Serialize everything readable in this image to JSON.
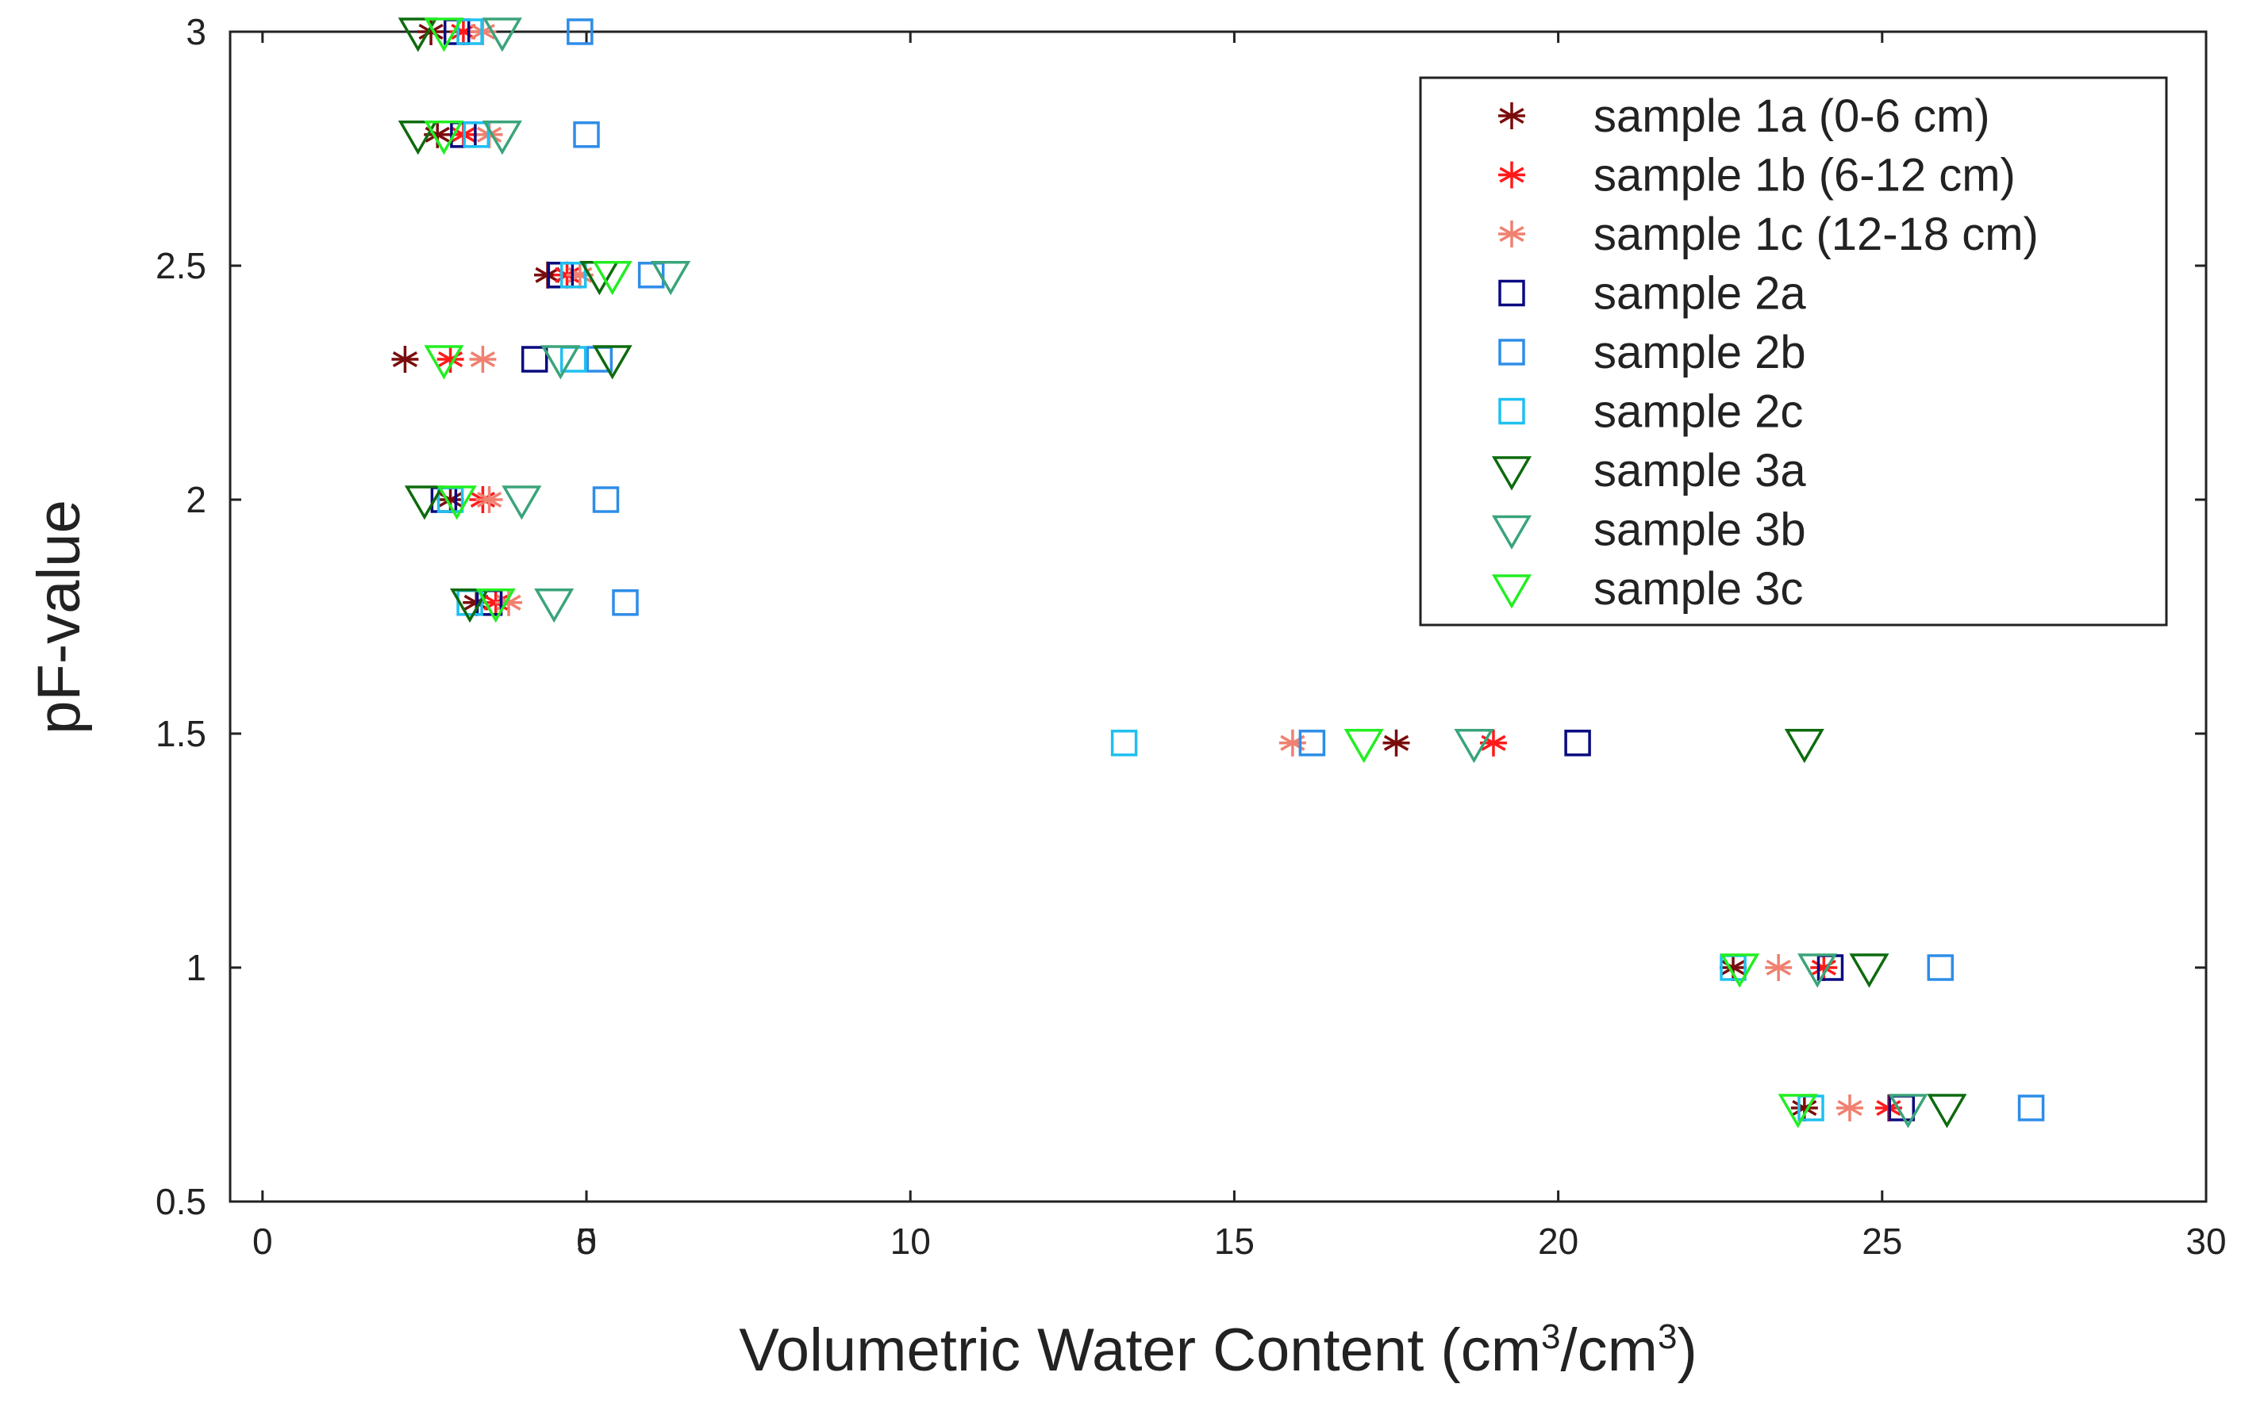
{
  "chart_data": {
    "type": "scatter",
    "xlabel_main": "Volumetric Water Content (cm",
    "xlabel_sup1": "3",
    "xlabel_mid": "/cm",
    "xlabel_sup2": "3",
    "xlabel_end": ")",
    "ylabel": "pF-value",
    "xlim": [
      -0.5,
      30
    ],
    "ylim": [
      0.5,
      3
    ],
    "xticks": [
      0,
      5,
      10,
      15,
      20,
      25,
      30
    ],
    "xtick_labels": [
      "0",
      "5",
      "0",
      "10",
      "15",
      "20",
      "25",
      "30"
    ],
    "xtick_positions": [
      0,
      5,
      5,
      10,
      15,
      20,
      25,
      30
    ],
    "yticks": [
      0.5,
      1,
      1.5,
      2,
      2.5,
      3
    ],
    "ytick_labels": [
      "0.5",
      "1",
      "1.5",
      "2",
      "2.5",
      "3"
    ],
    "legend_position": "top-right",
    "series": [
      {
        "name": "sample 1a (0-6 cm)",
        "marker": "asterisk",
        "color": "#7a0c0c",
        "points": [
          [
            2.6,
            3
          ],
          [
            2.7,
            2.78
          ],
          [
            4.4,
            2.48
          ],
          [
            2.2,
            2.3
          ],
          [
            2.9,
            2
          ],
          [
            3.3,
            1.78
          ],
          [
            17.5,
            1.48
          ],
          [
            22.7,
            1
          ],
          [
            23.8,
            0.7
          ]
        ]
      },
      {
        "name": "sample 1b (6-12 cm)",
        "marker": "asterisk",
        "color": "#ff1a1a",
        "points": [
          [
            3.1,
            3
          ],
          [
            3.1,
            2.78
          ],
          [
            4.7,
            2.48
          ],
          [
            2.9,
            2.3
          ],
          [
            3.4,
            2
          ],
          [
            3.6,
            1.78
          ],
          [
            19.0,
            1.48
          ],
          [
            24.1,
            1
          ],
          [
            25.1,
            0.7
          ]
        ]
      },
      {
        "name": "sample 1c (12-18 cm)",
        "marker": "asterisk",
        "color": "#f08070",
        "points": [
          [
            3.4,
            3
          ],
          [
            3.5,
            2.78
          ],
          [
            4.9,
            2.48
          ],
          [
            3.4,
            2.3
          ],
          [
            3.5,
            2
          ],
          [
            3.8,
            1.78
          ],
          [
            15.9,
            1.48
          ],
          [
            23.4,
            1
          ],
          [
            24.5,
            0.7
          ]
        ]
      },
      {
        "name": "sample 2a",
        "marker": "square",
        "color": "#0a0a80",
        "points": [
          [
            3.0,
            3
          ],
          [
            3.1,
            2.78
          ],
          [
            4.6,
            2.48
          ],
          [
            4.2,
            2.3
          ],
          [
            2.8,
            2
          ],
          [
            3.5,
            1.78
          ],
          [
            20.3,
            1.48
          ],
          [
            24.2,
            1
          ],
          [
            25.3,
            0.7
          ]
        ]
      },
      {
        "name": "sample 2b",
        "marker": "square",
        "color": "#2e8de8",
        "points": [
          [
            4.9,
            3
          ],
          [
            5.0,
            2.78
          ],
          [
            6.0,
            2.48
          ],
          [
            5.2,
            2.3
          ],
          [
            5.3,
            2
          ],
          [
            5.6,
            1.78
          ],
          [
            16.2,
            1.48
          ],
          [
            25.9,
            1
          ],
          [
            27.3,
            0.7
          ]
        ]
      },
      {
        "name": "sample 2c",
        "marker": "square",
        "color": "#1ec0f0",
        "points": [
          [
            3.2,
            3
          ],
          [
            3.3,
            2.78
          ],
          [
            4.8,
            2.48
          ],
          [
            4.8,
            2.3
          ],
          [
            2.9,
            2
          ],
          [
            3.2,
            1.78
          ],
          [
            13.3,
            1.48
          ],
          [
            22.7,
            1
          ],
          [
            23.9,
            0.7
          ]
        ]
      },
      {
        "name": "sample 3a",
        "marker": "triangle-down",
        "color": "#0d6b0d",
        "points": [
          [
            2.4,
            3
          ],
          [
            2.4,
            2.78
          ],
          [
            5.2,
            2.48
          ],
          [
            5.4,
            2.3
          ],
          [
            2.5,
            2
          ],
          [
            3.2,
            1.78
          ],
          [
            23.8,
            1.48
          ],
          [
            24.8,
            1
          ],
          [
            26.0,
            0.7
          ]
        ]
      },
      {
        "name": "sample 3b",
        "marker": "triangle-down",
        "color": "#3aa47a",
        "points": [
          [
            3.7,
            3
          ],
          [
            3.7,
            2.78
          ],
          [
            6.3,
            2.48
          ],
          [
            4.6,
            2.3
          ],
          [
            4.0,
            2
          ],
          [
            4.5,
            1.78
          ],
          [
            18.7,
            1.48
          ],
          [
            24.0,
            1
          ],
          [
            25.4,
            0.7
          ]
        ]
      },
      {
        "name": "sample 3c",
        "marker": "triangle-down",
        "color": "#22ee22",
        "points": [
          [
            2.8,
            3
          ],
          [
            2.8,
            2.78
          ],
          [
            5.4,
            2.48
          ],
          [
            2.8,
            2.3
          ],
          [
            3.0,
            2
          ],
          [
            3.6,
            1.78
          ],
          [
            17.0,
            1.48
          ],
          [
            22.8,
            1
          ],
          [
            23.7,
            0.7
          ]
        ]
      }
    ]
  }
}
